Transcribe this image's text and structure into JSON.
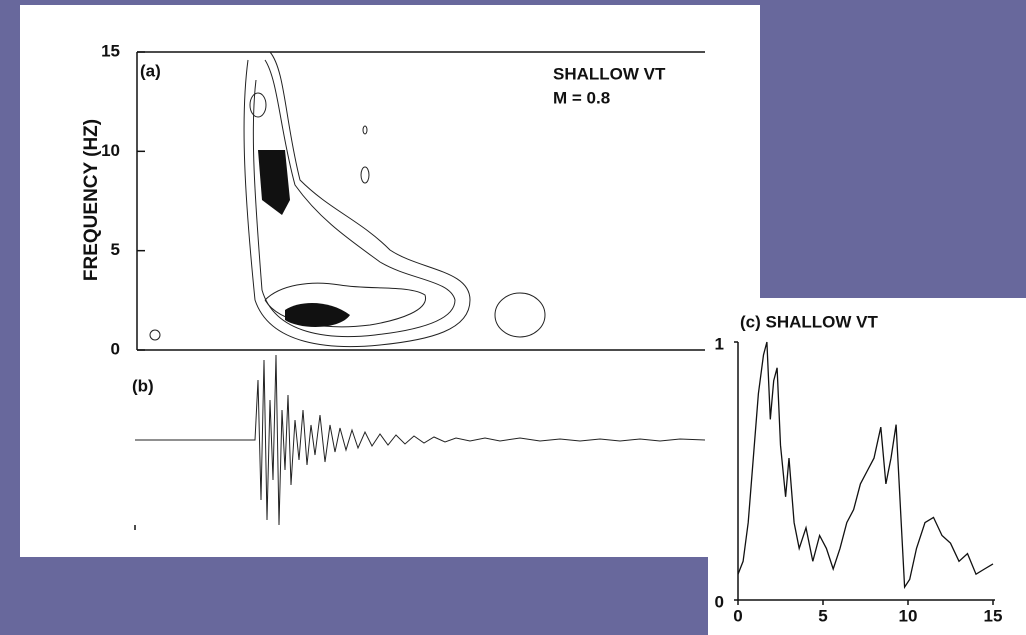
{
  "chart_data": [
    {
      "type": "contour",
      "panel_label": "(a)",
      "annotation": [
        "SHALLOW VT",
        "M = 0.8"
      ],
      "ylabel": "FREQUENCY (HZ)",
      "ylim": [
        0,
        15
      ],
      "yticks": [
        0,
        5,
        10,
        15
      ]
    },
    {
      "type": "waveform",
      "panel_label": "(b)"
    },
    {
      "type": "line",
      "title": "(c) SHALLOW VT",
      "color": "#111111",
      "x": [
        0,
        0.3,
        0.6,
        0.9,
        1.2,
        1.5,
        1.7,
        1.9,
        2.1,
        2.3,
        2.5,
        2.8,
        3.0,
        3.3,
        3.6,
        4.0,
        4.4,
        4.8,
        5.2,
        5.6,
        6.0,
        6.4,
        6.8,
        7.2,
        7.6,
        8.0,
        8.4,
        8.7,
        9.0,
        9.3,
        9.6,
        9.8,
        10.1,
        10.5,
        11.0,
        11.5,
        12.0,
        12.5,
        13.0,
        13.5,
        14.0,
        14.5,
        15.0
      ],
      "values": [
        0.1,
        0.15,
        0.3,
        0.55,
        0.8,
        0.95,
        1.0,
        0.7,
        0.85,
        0.9,
        0.6,
        0.4,
        0.55,
        0.3,
        0.2,
        0.28,
        0.15,
        0.25,
        0.2,
        0.12,
        0.2,
        0.3,
        0.35,
        0.45,
        0.5,
        0.55,
        0.67,
        0.45,
        0.55,
        0.68,
        0.3,
        0.05,
        0.08,
        0.2,
        0.3,
        0.32,
        0.25,
        0.22,
        0.15,
        0.18,
        0.1,
        0.12,
        0.14
      ],
      "xlim": [
        0,
        15
      ],
      "xticks": [
        0,
        5,
        10,
        15
      ],
      "ylim": [
        0,
        1
      ],
      "yticks": [
        0,
        1
      ]
    }
  ]
}
